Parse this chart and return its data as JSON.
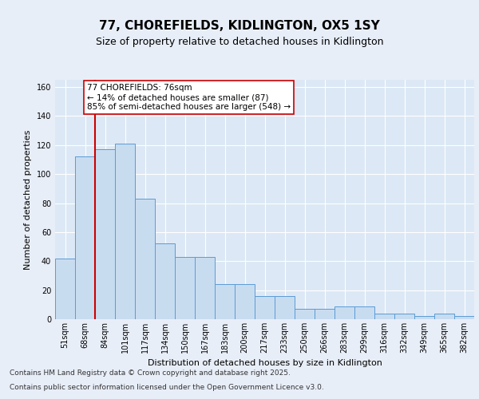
{
  "title": "77, CHOREFIELDS, KIDLINGTON, OX5 1SY",
  "subtitle": "Size of property relative to detached houses in Kidlington",
  "xlabel": "Distribution of detached houses by size in Kidlington",
  "ylabel": "Number of detached properties",
  "bin_labels": [
    "51sqm",
    "68sqm",
    "84sqm",
    "101sqm",
    "117sqm",
    "134sqm",
    "150sqm",
    "167sqm",
    "183sqm",
    "200sqm",
    "217sqm",
    "233sqm",
    "250sqm",
    "266sqm",
    "283sqm",
    "299sqm",
    "316sqm",
    "332sqm",
    "349sqm",
    "365sqm",
    "382sqm"
  ],
  "heights": [
    42,
    112,
    117,
    121,
    83,
    52,
    43,
    43,
    24,
    24,
    16,
    16,
    7,
    7,
    9,
    9,
    4,
    4,
    2,
    4,
    2
  ],
  "bar_color": "#c8dcf0",
  "bar_edge_color": "#5b9bd5",
  "vline_after_bar": 1,
  "vline_color": "#cc0000",
  "annotation_text": "77 CHOREFIELDS: 76sqm\n← 14% of detached houses are smaller (87)\n85% of semi-detached houses are larger (548) →",
  "annotation_box_color": "#ffffff",
  "annotation_box_edge": "#cc0000",
  "ylim": [
    0,
    165
  ],
  "yticks": [
    0,
    20,
    40,
    60,
    80,
    100,
    120,
    140,
    160
  ],
  "fig_bg_color": "#e8eef8",
  "plot_bg": "#dce8f5",
  "grid_color": "#ffffff",
  "title_fontsize": 11,
  "subtitle_fontsize": 9,
  "axis_label_fontsize": 8,
  "tick_fontsize": 7,
  "annotation_fontsize": 7.5,
  "footer_fontsize": 6.5,
  "footer_line1": "Contains HM Land Registry data © Crown copyright and database right 2025.",
  "footer_line2": "Contains public sector information licensed under the Open Government Licence v3.0."
}
